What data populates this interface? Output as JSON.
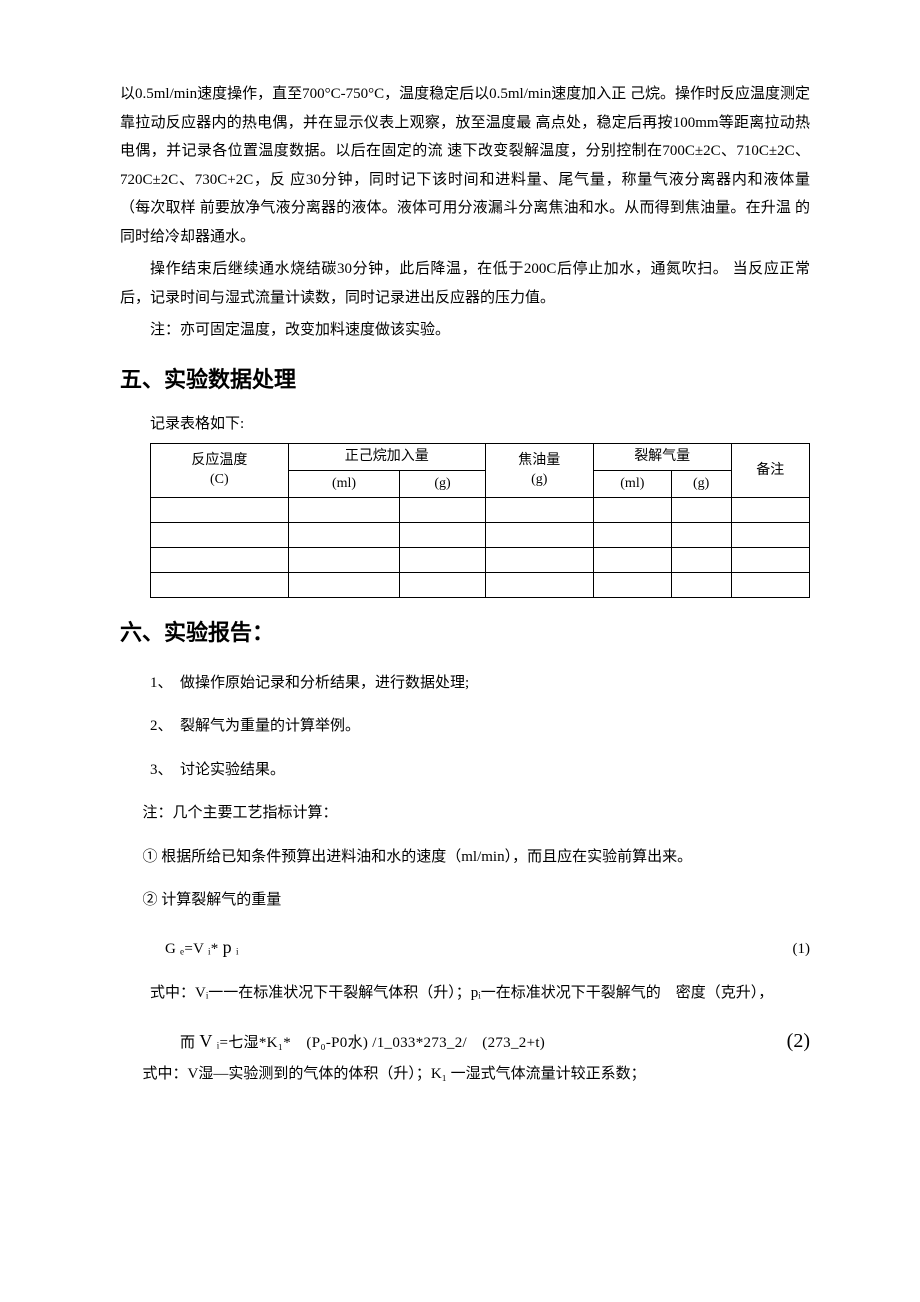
{
  "paragraphs": {
    "p1": "以0.5ml/min速度操作，直至700°C-750°C，温度稳定后以0.5ml/min速度加入正 己烷。操作时反应温度测定靠拉动反应器内的热电偶，并在显示仪表上观察，放至温度最 高点处，稳定后再按100mm等距离拉动热电偶，并记录各位置温度数据。以后在固定的流 速下改变裂解温度，分别控制在700C±2C、710C±2C、720C±2C、730C+2C，反 应30分钟，同时记下该时间和进料量、尾气量，称量气液分离器内和液体量（每次取样 前要放净气液分离器的液体。液体可用分液漏斗分离焦油和水。从而得到焦油量。在升温 的同时给冷却器通水。",
    "p2": "操作结束后继续通水烧结碳30分钟，此后降温，在低于200C后停止加水，通氮吹扫。 当反应正常后，记录时间与湿式流量计读数，同时记录进出反应器的压力值。",
    "p3": "注：亦可固定温度，改变加料速度做该实验。"
  },
  "section5": {
    "title": "五、实验数据处理",
    "intro": "记录表格如下:",
    "table": {
      "headers": {
        "col1_top": "反应温度",
        "col1_bot": "(C)",
        "col2_top": "正己烷加入量",
        "col2a": "(ml)",
        "col2b": "(g)",
        "col3_top": "焦油量",
        "col3_bot": "(g)",
        "col4_top": "裂解气量",
        "col4a": "(ml)",
        "col4b": "(g)",
        "col5": "备注"
      },
      "empty_rows": 4
    }
  },
  "section6": {
    "title": "六、实验报告：",
    "items": {
      "i1": "1、　做操作原始记录和分析结果，进行数据处理;",
      "i2": "2、　裂解气为重量的计算举例。",
      "i3": "3、　讨论实验结果。"
    },
    "note": "注：几个主要工艺指标计算：",
    "calc1": "① 根据所给已知条件预算出进料油和水的速度（ml/min），而且应在实验前算出来。",
    "calc2_title": "② 计算裂解气的重量",
    "formula1_left": "G ₑ=V ᵢ* ",
    "formula1_p": "p",
    "formula1_sub": " ᵢ",
    "formula1_num": "(1)",
    "formula1_desc": "式中：Vᵢ一一在标准状况下干裂解气体积（升）；pᵢ一在标准状况下干裂解气的　密度（克升），",
    "formula2_prefix": "而 ",
    "formula2_V": "V",
    "formula2_body": " ᵢ=七湿*K₁*　(P₀-P0水) /1_033*273_2/　(273_2+t)",
    "formula2_num": "(2)",
    "formula2_desc": "式中：V湿—实验测到的气体的体积（升）；K₁ 一湿式气体流量计较正系数；"
  },
  "styles": {
    "body_fontsize": 15,
    "h2_fontsize": 22,
    "line_height": 1.9,
    "text_color": "#000000",
    "bg_color": "#ffffff",
    "border_color": "#000000",
    "table_fontsize": 14
  }
}
